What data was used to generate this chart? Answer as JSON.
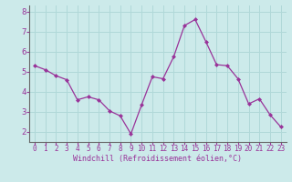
{
  "x": [
    0,
    1,
    2,
    3,
    4,
    5,
    6,
    7,
    8,
    9,
    10,
    11,
    12,
    13,
    14,
    15,
    16,
    17,
    18,
    19,
    20,
    21,
    22,
    23
  ],
  "y": [
    5.3,
    5.1,
    4.8,
    4.6,
    3.6,
    3.75,
    3.6,
    3.05,
    2.8,
    1.9,
    3.35,
    4.75,
    4.65,
    5.75,
    7.3,
    7.6,
    6.5,
    5.35,
    5.3,
    4.65,
    3.4,
    3.65,
    2.85,
    2.25
  ],
  "line_color": "#993399",
  "marker": "D",
  "marker_size": 2,
  "bg_color": "#cceaea",
  "grid_color": "#b0d8d8",
  "axis_color": "#666666",
  "xlabel": "Windchill (Refroidissement éolien,°C)",
  "xlabel_color": "#993399",
  "tick_color": "#993399",
  "ylim": [
    1.5,
    8.3
  ],
  "xlim": [
    -0.5,
    23.5
  ],
  "yticks": [
    2,
    3,
    4,
    5,
    6,
    7,
    8
  ],
  "xticks": [
    0,
    1,
    2,
    3,
    4,
    5,
    6,
    7,
    8,
    9,
    10,
    11,
    12,
    13,
    14,
    15,
    16,
    17,
    18,
    19,
    20,
    21,
    22,
    23
  ],
  "tick_fontsize": 5.5,
  "xlabel_fontsize": 6.0,
  "ytick_fontsize": 6.5
}
